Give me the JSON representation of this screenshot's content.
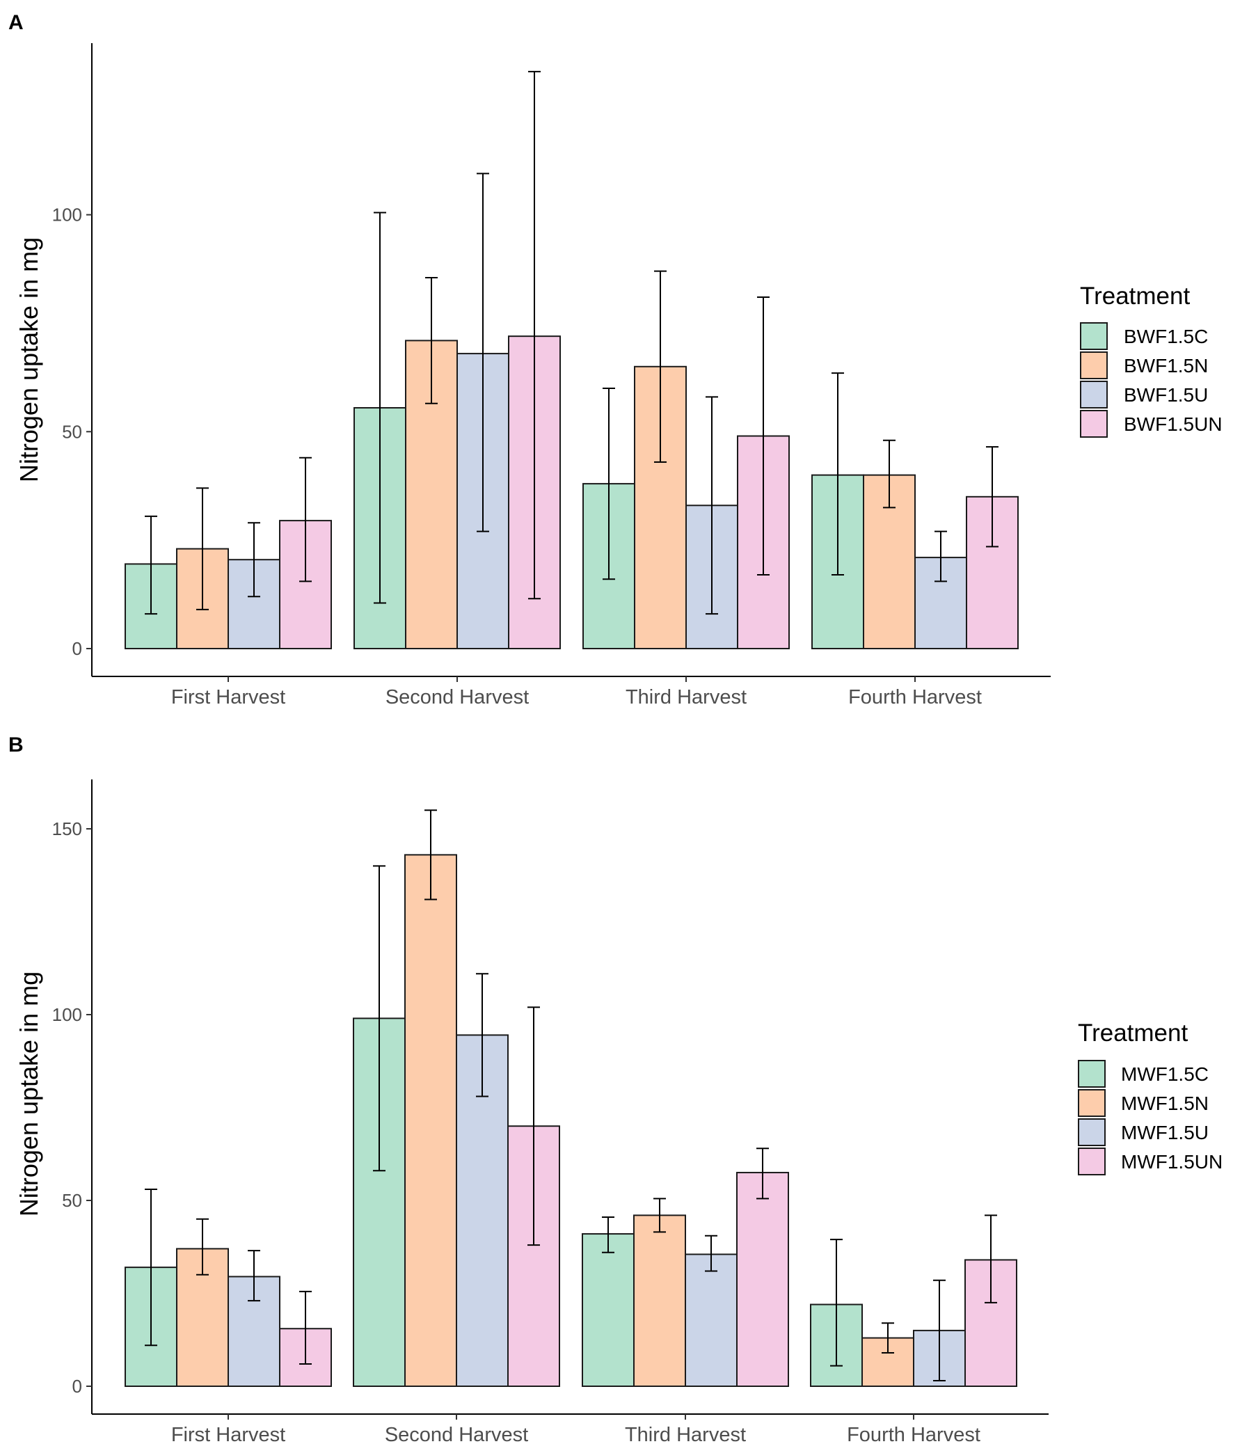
{
  "chart_data": [
    {
      "panel": "A",
      "type": "bar",
      "ylabel": "Nitrogen uptake in mg",
      "xlabel": "",
      "ylim": [
        -7,
        140
      ],
      "yticks": [
        0,
        50,
        100
      ],
      "categories": [
        "First Harvest",
        "Second Harvest",
        "Third Harvest",
        "Fourth Harvest"
      ],
      "legend_title": "Treatment",
      "legend_position": "right",
      "series": [
        {
          "name": "BWF1.5C",
          "color": "#b3e2cd",
          "values": [
            19.5,
            55.5,
            38,
            40
          ],
          "err_low": [
            8,
            10.5,
            16,
            17
          ],
          "err_high": [
            30.5,
            100.5,
            60,
            63.5
          ]
        },
        {
          "name": "BWF1.5N",
          "color": "#fdcdac",
          "values": [
            23,
            71,
            65,
            40
          ],
          "err_low": [
            9,
            56.5,
            43,
            32.5
          ],
          "err_high": [
            37,
            85.5,
            87,
            48
          ]
        },
        {
          "name": "BWF1.5U",
          "color": "#cbd5e8",
          "values": [
            20.5,
            68,
            33,
            21
          ],
          "err_low": [
            12,
            27,
            8,
            15.5
          ],
          "err_high": [
            29,
            109.5,
            58,
            27
          ]
        },
        {
          "name": "BWF1.5UN",
          "color": "#f4cae4",
          "values": [
            29.5,
            72,
            49,
            35
          ],
          "err_low": [
            15.5,
            11.5,
            17,
            23.5
          ],
          "err_high": [
            44,
            133,
            81,
            46.5
          ]
        }
      ]
    },
    {
      "panel": "B",
      "type": "bar",
      "ylabel": "Nitrogen uptake in mg",
      "xlabel": "",
      "ylim": [
        -7,
        162
      ],
      "yticks": [
        0,
        50,
        100,
        150
      ],
      "categories": [
        "First Harvest",
        "Second Harvest",
        "Third Harvest",
        "Fourth Harvest"
      ],
      "legend_title": "Treatment",
      "legend_position": "right",
      "series": [
        {
          "name": "MWF1.5C",
          "color": "#b3e2cd",
          "values": [
            32,
            99,
            41,
            22
          ],
          "err_low": [
            11,
            58,
            36,
            5.5
          ],
          "err_high": [
            53,
            140,
            45.5,
            39.5
          ]
        },
        {
          "name": "MWF1.5N",
          "color": "#fdcdac",
          "values": [
            37,
            143,
            46,
            13
          ],
          "err_low": [
            30,
            131,
            41.5,
            9
          ],
          "err_high": [
            45,
            155,
            50.5,
            17
          ]
        },
        {
          "name": "MWF1.5U",
          "color": "#cbd5e8",
          "values": [
            29.5,
            94.5,
            35.5,
            15
          ],
          "err_low": [
            23,
            78,
            31,
            1.5
          ],
          "err_high": [
            36.5,
            111,
            40.5,
            28.5
          ]
        },
        {
          "name": "MWF1.5UN",
          "color": "#f4cae4",
          "values": [
            15.5,
            70,
            57.5,
            34
          ],
          "err_low": [
            6,
            38,
            50.5,
            22.5
          ],
          "err_high": [
            25.5,
            102,
            64,
            46
          ]
        }
      ]
    }
  ]
}
